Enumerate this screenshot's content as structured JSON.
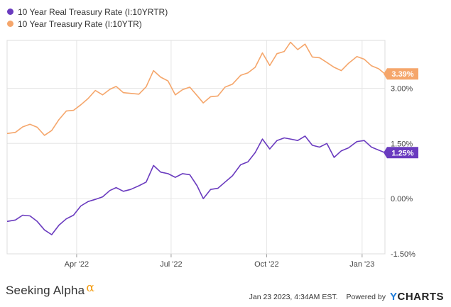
{
  "legend": [
    {
      "label": "10 Year Real Treasury Rate (I:10YRTR)",
      "color": "#6a3bbf"
    },
    {
      "label": "10 Year Treasury Rate (I:10YTR)",
      "color": "#f5a66b"
    }
  ],
  "footer": {
    "brand": "Seeking Alpha",
    "brand_symbol": "α",
    "timestamp": "Jan 23 2023, 4:34AM EST.",
    "powered_by": "Powered by",
    "ycharts": "YCHARTS"
  },
  "chart_data": {
    "type": "line",
    "x_range": [
      "2022-01-24",
      "2023-01-23"
    ],
    "x_ticks": [
      {
        "date": "2022-04-01",
        "label": "Apr '22"
      },
      {
        "date": "2022-07-01",
        "label": "Jul '22"
      },
      {
        "date": "2022-10-01",
        "label": "Oct '22"
      },
      {
        "date": "2023-01-01",
        "label": "Jan '23"
      }
    ],
    "y_ticks": [
      {
        "value": -1.5,
        "label": "-1.50%"
      },
      {
        "value": 0,
        "label": "0.00%"
      },
      {
        "value": 1.5,
        "label": "1.50%"
      },
      {
        "value": 3,
        "label": "3.00%"
      }
    ],
    "ylim": [
      -1.5,
      4.3
    ],
    "grid": true,
    "series": [
      {
        "name": "10 Year Treasury Rate (I:10YTR)",
        "color": "#f5a66b",
        "last_label": "3.39%",
        "points": [
          [
            "2022-01-24",
            1.77
          ],
          [
            "2022-02-01",
            1.8
          ],
          [
            "2022-02-08",
            1.95
          ],
          [
            "2022-02-15",
            2.02
          ],
          [
            "2022-02-22",
            1.94
          ],
          [
            "2022-03-01",
            1.72
          ],
          [
            "2022-03-08",
            1.85
          ],
          [
            "2022-03-15",
            2.15
          ],
          [
            "2022-03-22",
            2.38
          ],
          [
            "2022-03-29",
            2.4
          ],
          [
            "2022-04-05",
            2.55
          ],
          [
            "2022-04-12",
            2.72
          ],
          [
            "2022-04-19",
            2.94
          ],
          [
            "2022-04-26",
            2.82
          ],
          [
            "2022-05-03",
            2.97
          ],
          [
            "2022-05-09",
            3.05
          ],
          [
            "2022-05-16",
            2.88
          ],
          [
            "2022-05-23",
            2.86
          ],
          [
            "2022-05-31",
            2.84
          ],
          [
            "2022-06-07",
            3.04
          ],
          [
            "2022-06-14",
            3.48
          ],
          [
            "2022-06-21",
            3.3
          ],
          [
            "2022-06-28",
            3.2
          ],
          [
            "2022-07-05",
            2.82
          ],
          [
            "2022-07-12",
            2.96
          ],
          [
            "2022-07-19",
            3.03
          ],
          [
            "2022-07-26",
            2.8
          ],
          [
            "2022-08-01",
            2.6
          ],
          [
            "2022-08-08",
            2.77
          ],
          [
            "2022-08-15",
            2.79
          ],
          [
            "2022-08-22",
            3.03
          ],
          [
            "2022-08-29",
            3.11
          ],
          [
            "2022-09-06",
            3.35
          ],
          [
            "2022-09-13",
            3.42
          ],
          [
            "2022-09-20",
            3.57
          ],
          [
            "2022-09-27",
            3.96
          ],
          [
            "2022-10-04",
            3.62
          ],
          [
            "2022-10-11",
            3.94
          ],
          [
            "2022-10-18",
            4.0
          ],
          [
            "2022-10-24",
            4.25
          ],
          [
            "2022-10-31",
            4.05
          ],
          [
            "2022-11-07",
            4.2
          ],
          [
            "2022-11-14",
            3.85
          ],
          [
            "2022-11-21",
            3.83
          ],
          [
            "2022-11-28",
            3.7
          ],
          [
            "2022-12-05",
            3.57
          ],
          [
            "2022-12-12",
            3.48
          ],
          [
            "2022-12-19",
            3.68
          ],
          [
            "2022-12-27",
            3.86
          ],
          [
            "2023-01-03",
            3.79
          ],
          [
            "2023-01-10",
            3.61
          ],
          [
            "2023-01-17",
            3.53
          ],
          [
            "2023-01-23",
            3.39
          ]
        ]
      },
      {
        "name": "10 Year Real Treasury Rate (I:10YRTR)",
        "color": "#6a3bbf",
        "last_label": "1.25%",
        "points": [
          [
            "2022-01-24",
            -0.62
          ],
          [
            "2022-02-01",
            -0.58
          ],
          [
            "2022-02-08",
            -0.45
          ],
          [
            "2022-02-15",
            -0.47
          ],
          [
            "2022-02-22",
            -0.62
          ],
          [
            "2022-03-01",
            -0.85
          ],
          [
            "2022-03-08",
            -0.98
          ],
          [
            "2022-03-15",
            -0.72
          ],
          [
            "2022-03-22",
            -0.55
          ],
          [
            "2022-03-29",
            -0.45
          ],
          [
            "2022-04-05",
            -0.2
          ],
          [
            "2022-04-12",
            -0.08
          ],
          [
            "2022-04-19",
            -0.02
          ],
          [
            "2022-04-26",
            0.05
          ],
          [
            "2022-05-03",
            0.22
          ],
          [
            "2022-05-09",
            0.3
          ],
          [
            "2022-05-16",
            0.2
          ],
          [
            "2022-05-23",
            0.25
          ],
          [
            "2022-05-31",
            0.35
          ],
          [
            "2022-06-07",
            0.45
          ],
          [
            "2022-06-14",
            0.9
          ],
          [
            "2022-06-21",
            0.72
          ],
          [
            "2022-06-28",
            0.68
          ],
          [
            "2022-07-05",
            0.58
          ],
          [
            "2022-07-12",
            0.68
          ],
          [
            "2022-07-19",
            0.65
          ],
          [
            "2022-07-26",
            0.35
          ],
          [
            "2022-08-01",
            0.0
          ],
          [
            "2022-08-08",
            0.25
          ],
          [
            "2022-08-15",
            0.28
          ],
          [
            "2022-08-22",
            0.45
          ],
          [
            "2022-08-29",
            0.62
          ],
          [
            "2022-09-06",
            0.92
          ],
          [
            "2022-09-13",
            1.0
          ],
          [
            "2022-09-20",
            1.25
          ],
          [
            "2022-09-27",
            1.62
          ],
          [
            "2022-10-04",
            1.35
          ],
          [
            "2022-10-11",
            1.58
          ],
          [
            "2022-10-18",
            1.65
          ],
          [
            "2022-10-24",
            1.62
          ],
          [
            "2022-10-31",
            1.58
          ],
          [
            "2022-11-07",
            1.7
          ],
          [
            "2022-11-14",
            1.45
          ],
          [
            "2022-11-21",
            1.4
          ],
          [
            "2022-11-28",
            1.5
          ],
          [
            "2022-12-05",
            1.12
          ],
          [
            "2022-12-12",
            1.3
          ],
          [
            "2022-12-19",
            1.38
          ],
          [
            "2022-12-27",
            1.55
          ],
          [
            "2023-01-03",
            1.58
          ],
          [
            "2023-01-10",
            1.4
          ],
          [
            "2023-01-17",
            1.32
          ],
          [
            "2023-01-23",
            1.25
          ]
        ]
      }
    ]
  }
}
